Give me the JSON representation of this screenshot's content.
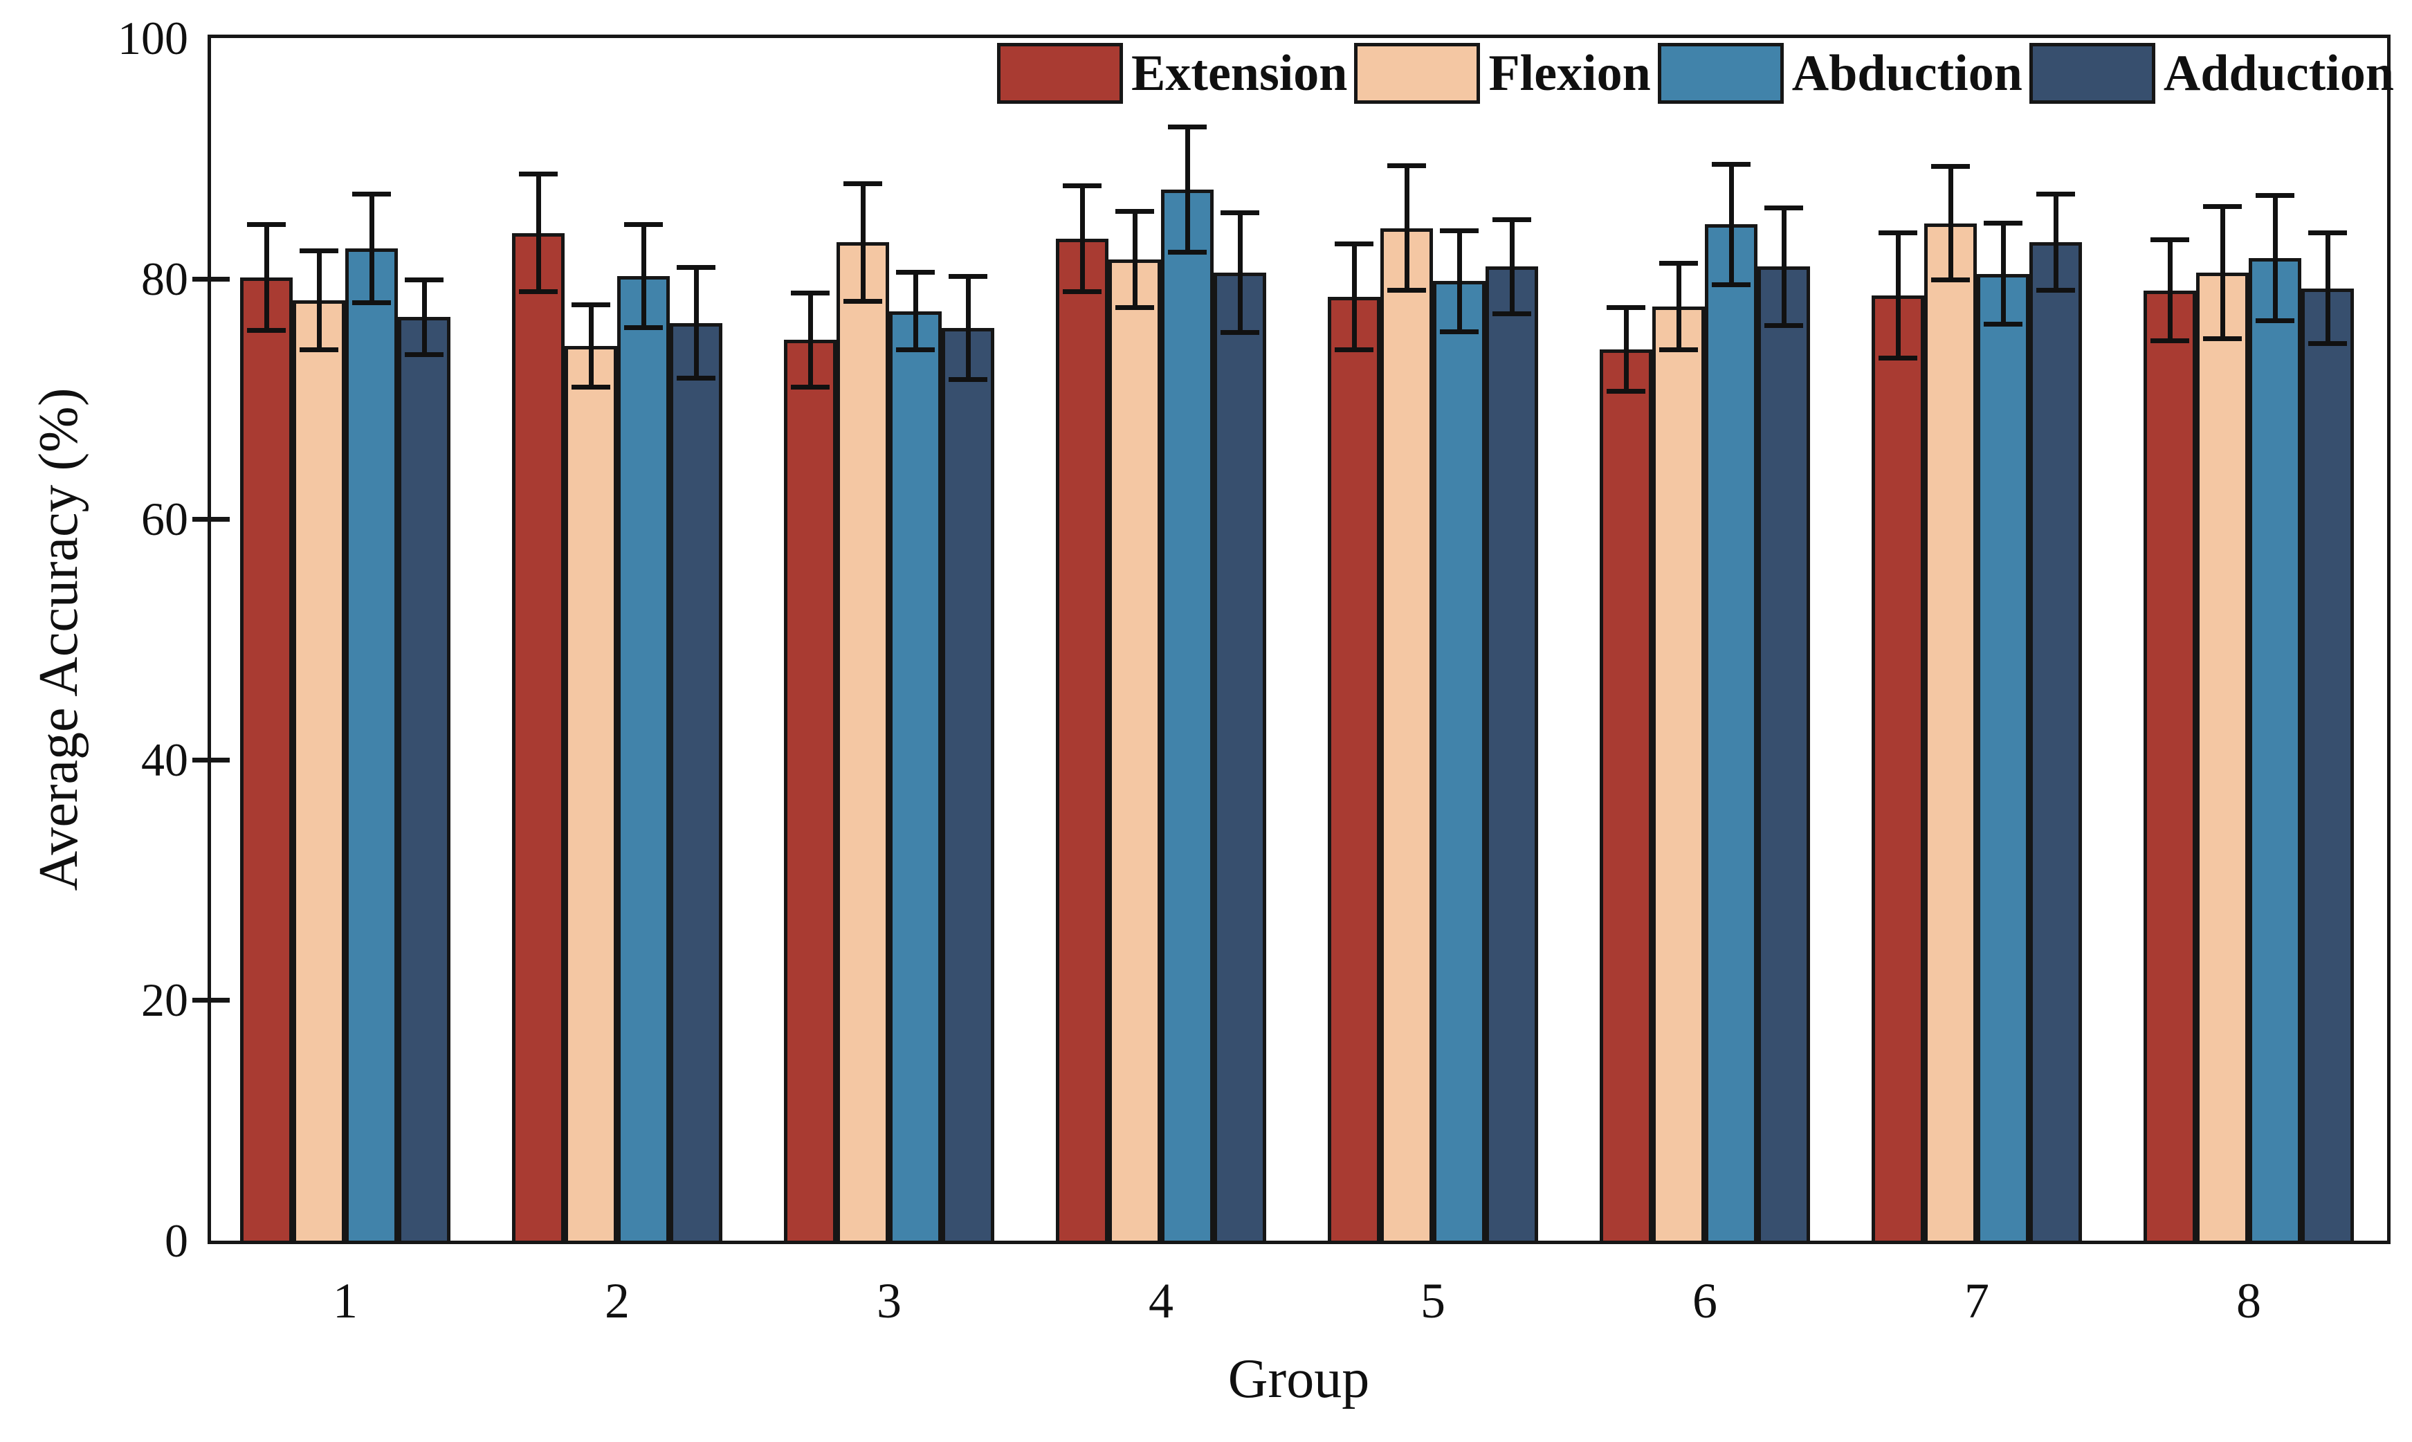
{
  "chart_data": {
    "type": "bar",
    "title": "",
    "xlabel": "Group",
    "ylabel": "Average Accuracy (%)",
    "categories": [
      "1",
      "2",
      "3",
      "4",
      "5",
      "6",
      "7",
      "8"
    ],
    "ylim": [
      0,
      100
    ],
    "y_ticks": [
      0,
      20,
      40,
      60,
      80,
      100
    ],
    "grid": false,
    "legend_position": "top-right-inside",
    "error_bars": true,
    "series": [
      {
        "name": "Extension",
        "color": "#A93B32",
        "values": [
          80.1,
          83.8,
          74.9,
          83.3,
          78.5,
          74.1,
          78.6,
          79.0
        ],
        "errors": [
          4.4,
          4.9,
          3.9,
          4.4,
          4.4,
          3.5,
          5.2,
          4.2
        ]
      },
      {
        "name": "Flexion",
        "color": "#F4C7A3",
        "values": [
          78.2,
          74.4,
          83.0,
          81.6,
          84.2,
          77.7,
          84.6,
          80.5
        ],
        "errors": [
          4.1,
          3.4,
          4.9,
          4.0,
          5.2,
          3.6,
          4.7,
          5.5
        ]
      },
      {
        "name": "Abduction",
        "color": "#4183AA",
        "values": [
          82.5,
          80.2,
          77.3,
          87.4,
          79.8,
          84.5,
          80.4,
          81.7
        ],
        "errors": [
          4.5,
          4.3,
          3.2,
          5.2,
          4.2,
          5.0,
          4.2,
          5.2
        ]
      },
      {
        "name": "Adduction",
        "color": "#374F6E",
        "values": [
          76.8,
          76.3,
          75.9,
          80.5,
          81.0,
          81.0,
          83.0,
          79.2
        ],
        "errors": [
          3.1,
          4.6,
          4.3,
          5.0,
          3.9,
          4.9,
          4.0,
          4.6
        ]
      }
    ],
    "axis_color": "#161616",
    "error_bar_color": "#111111"
  }
}
